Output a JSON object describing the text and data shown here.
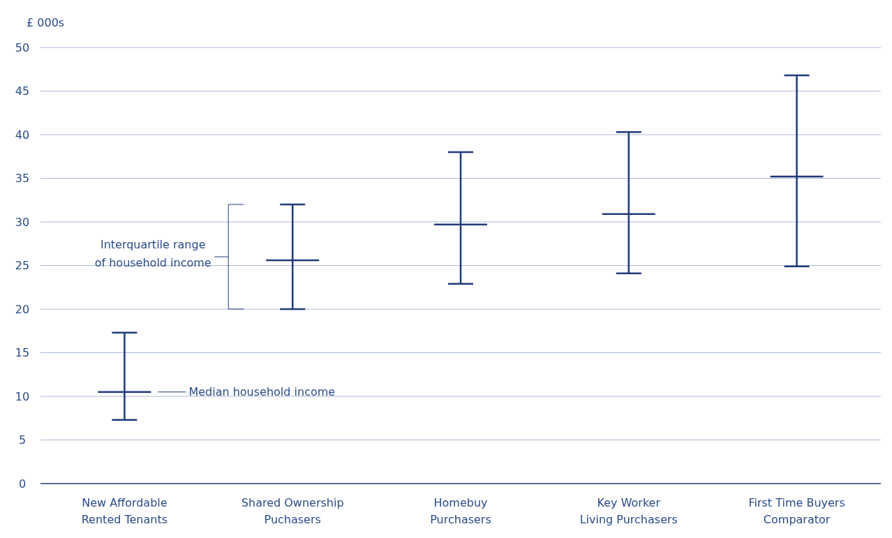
{
  "chart_data": {
    "type": "box",
    "ylabel": "£ 000s",
    "categories": [
      "New Affordable\nRented Tenants",
      "Shared Ownership\nPuchasers",
      "Homebuy\nPurchasers",
      "Key Worker\nLiving Purchasers",
      "First Time Buyers\nComparator"
    ],
    "boxes": [
      {
        "low": 7.3,
        "q1": 10.5,
        "median": 10.5,
        "q3": 10.5,
        "high": 17.3
      },
      {
        "low": 20.0,
        "q1": 25.6,
        "median": 25.6,
        "q3": 25.6,
        "high": 32.0
      },
      {
        "low": 22.9,
        "q1": 29.7,
        "median": 29.7,
        "q3": 29.7,
        "high": 38.0
      },
      {
        "low": 24.1,
        "q1": 30.9,
        "median": 30.9,
        "q3": 30.9,
        "high": 40.3
      },
      {
        "low": 24.9,
        "q1": 35.2,
        "median": 35.2,
        "q3": 35.2,
        "high": 46.8
      }
    ],
    "color": "#1f3a7a",
    "ylim": [
      0,
      50
    ],
    "yticks": [
      0,
      5,
      10,
      15,
      20,
      25,
      30,
      35,
      40,
      45,
      50
    ],
    "grid": "y",
    "annotations": [
      "Interquartile range\nof household income",
      "Median household income"
    ]
  }
}
